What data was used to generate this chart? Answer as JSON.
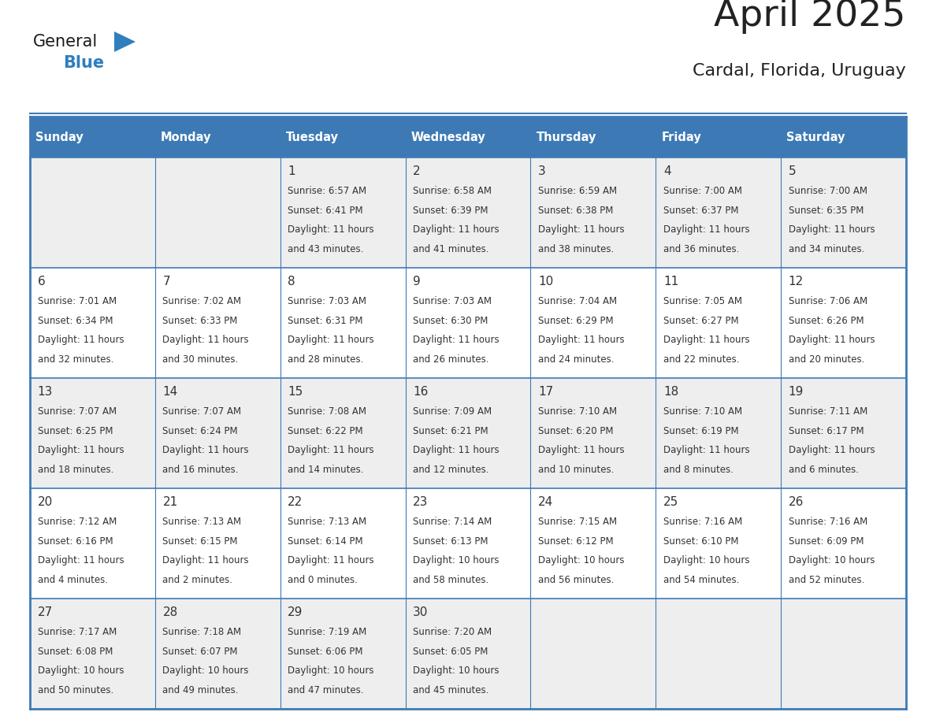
{
  "title": "April 2025",
  "subtitle": "Cardal, Florida, Uruguay",
  "header_bg_color": "#3d7ab5",
  "header_text_color": "#FFFFFF",
  "weekdays": [
    "Sunday",
    "Monday",
    "Tuesday",
    "Wednesday",
    "Thursday",
    "Friday",
    "Saturday"
  ],
  "row_colors": [
    "#eeeeee",
    "#ffffff"
  ],
  "border_color": "#3d7ab5",
  "text_color": "#333333",
  "day_num_color": "#333333",
  "title_color": "#222222",
  "calendar": [
    [
      {
        "day": "",
        "lines": []
      },
      {
        "day": "",
        "lines": []
      },
      {
        "day": "1",
        "lines": [
          "Sunrise: 6:57 AM",
          "Sunset: 6:41 PM",
          "Daylight: 11 hours",
          "and 43 minutes."
        ]
      },
      {
        "day": "2",
        "lines": [
          "Sunrise: 6:58 AM",
          "Sunset: 6:39 PM",
          "Daylight: 11 hours",
          "and 41 minutes."
        ]
      },
      {
        "day": "3",
        "lines": [
          "Sunrise: 6:59 AM",
          "Sunset: 6:38 PM",
          "Daylight: 11 hours",
          "and 38 minutes."
        ]
      },
      {
        "day": "4",
        "lines": [
          "Sunrise: 7:00 AM",
          "Sunset: 6:37 PM",
          "Daylight: 11 hours",
          "and 36 minutes."
        ]
      },
      {
        "day": "5",
        "lines": [
          "Sunrise: 7:00 AM",
          "Sunset: 6:35 PM",
          "Daylight: 11 hours",
          "and 34 minutes."
        ]
      }
    ],
    [
      {
        "day": "6",
        "lines": [
          "Sunrise: 7:01 AM",
          "Sunset: 6:34 PM",
          "Daylight: 11 hours",
          "and 32 minutes."
        ]
      },
      {
        "day": "7",
        "lines": [
          "Sunrise: 7:02 AM",
          "Sunset: 6:33 PM",
          "Daylight: 11 hours",
          "and 30 minutes."
        ]
      },
      {
        "day": "8",
        "lines": [
          "Sunrise: 7:03 AM",
          "Sunset: 6:31 PM",
          "Daylight: 11 hours",
          "and 28 minutes."
        ]
      },
      {
        "day": "9",
        "lines": [
          "Sunrise: 7:03 AM",
          "Sunset: 6:30 PM",
          "Daylight: 11 hours",
          "and 26 minutes."
        ]
      },
      {
        "day": "10",
        "lines": [
          "Sunrise: 7:04 AM",
          "Sunset: 6:29 PM",
          "Daylight: 11 hours",
          "and 24 minutes."
        ]
      },
      {
        "day": "11",
        "lines": [
          "Sunrise: 7:05 AM",
          "Sunset: 6:27 PM",
          "Daylight: 11 hours",
          "and 22 minutes."
        ]
      },
      {
        "day": "12",
        "lines": [
          "Sunrise: 7:06 AM",
          "Sunset: 6:26 PM",
          "Daylight: 11 hours",
          "and 20 minutes."
        ]
      }
    ],
    [
      {
        "day": "13",
        "lines": [
          "Sunrise: 7:07 AM",
          "Sunset: 6:25 PM",
          "Daylight: 11 hours",
          "and 18 minutes."
        ]
      },
      {
        "day": "14",
        "lines": [
          "Sunrise: 7:07 AM",
          "Sunset: 6:24 PM",
          "Daylight: 11 hours",
          "and 16 minutes."
        ]
      },
      {
        "day": "15",
        "lines": [
          "Sunrise: 7:08 AM",
          "Sunset: 6:22 PM",
          "Daylight: 11 hours",
          "and 14 minutes."
        ]
      },
      {
        "day": "16",
        "lines": [
          "Sunrise: 7:09 AM",
          "Sunset: 6:21 PM",
          "Daylight: 11 hours",
          "and 12 minutes."
        ]
      },
      {
        "day": "17",
        "lines": [
          "Sunrise: 7:10 AM",
          "Sunset: 6:20 PM",
          "Daylight: 11 hours",
          "and 10 minutes."
        ]
      },
      {
        "day": "18",
        "lines": [
          "Sunrise: 7:10 AM",
          "Sunset: 6:19 PM",
          "Daylight: 11 hours",
          "and 8 minutes."
        ]
      },
      {
        "day": "19",
        "lines": [
          "Sunrise: 7:11 AM",
          "Sunset: 6:17 PM",
          "Daylight: 11 hours",
          "and 6 minutes."
        ]
      }
    ],
    [
      {
        "day": "20",
        "lines": [
          "Sunrise: 7:12 AM",
          "Sunset: 6:16 PM",
          "Daylight: 11 hours",
          "and 4 minutes."
        ]
      },
      {
        "day": "21",
        "lines": [
          "Sunrise: 7:13 AM",
          "Sunset: 6:15 PM",
          "Daylight: 11 hours",
          "and 2 minutes."
        ]
      },
      {
        "day": "22",
        "lines": [
          "Sunrise: 7:13 AM",
          "Sunset: 6:14 PM",
          "Daylight: 11 hours",
          "and 0 minutes."
        ]
      },
      {
        "day": "23",
        "lines": [
          "Sunrise: 7:14 AM",
          "Sunset: 6:13 PM",
          "Daylight: 10 hours",
          "and 58 minutes."
        ]
      },
      {
        "day": "24",
        "lines": [
          "Sunrise: 7:15 AM",
          "Sunset: 6:12 PM",
          "Daylight: 10 hours",
          "and 56 minutes."
        ]
      },
      {
        "day": "25",
        "lines": [
          "Sunrise: 7:16 AM",
          "Sunset: 6:10 PM",
          "Daylight: 10 hours",
          "and 54 minutes."
        ]
      },
      {
        "day": "26",
        "lines": [
          "Sunrise: 7:16 AM",
          "Sunset: 6:09 PM",
          "Daylight: 10 hours",
          "and 52 minutes."
        ]
      }
    ],
    [
      {
        "day": "27",
        "lines": [
          "Sunrise: 7:17 AM",
          "Sunset: 6:08 PM",
          "Daylight: 10 hours",
          "and 50 minutes."
        ]
      },
      {
        "day": "28",
        "lines": [
          "Sunrise: 7:18 AM",
          "Sunset: 6:07 PM",
          "Daylight: 10 hours",
          "and 49 minutes."
        ]
      },
      {
        "day": "29",
        "lines": [
          "Sunrise: 7:19 AM",
          "Sunset: 6:06 PM",
          "Daylight: 10 hours",
          "and 47 minutes."
        ]
      },
      {
        "day": "30",
        "lines": [
          "Sunrise: 7:20 AM",
          "Sunset: 6:05 PM",
          "Daylight: 10 hours",
          "and 45 minutes."
        ]
      },
      {
        "day": "",
        "lines": []
      },
      {
        "day": "",
        "lines": []
      },
      {
        "day": "",
        "lines": []
      }
    ]
  ],
  "logo_color_general": "#1a1a1a",
  "logo_color_blue": "#2e7fbc",
  "logo_triangle_color": "#2e7fbc"
}
